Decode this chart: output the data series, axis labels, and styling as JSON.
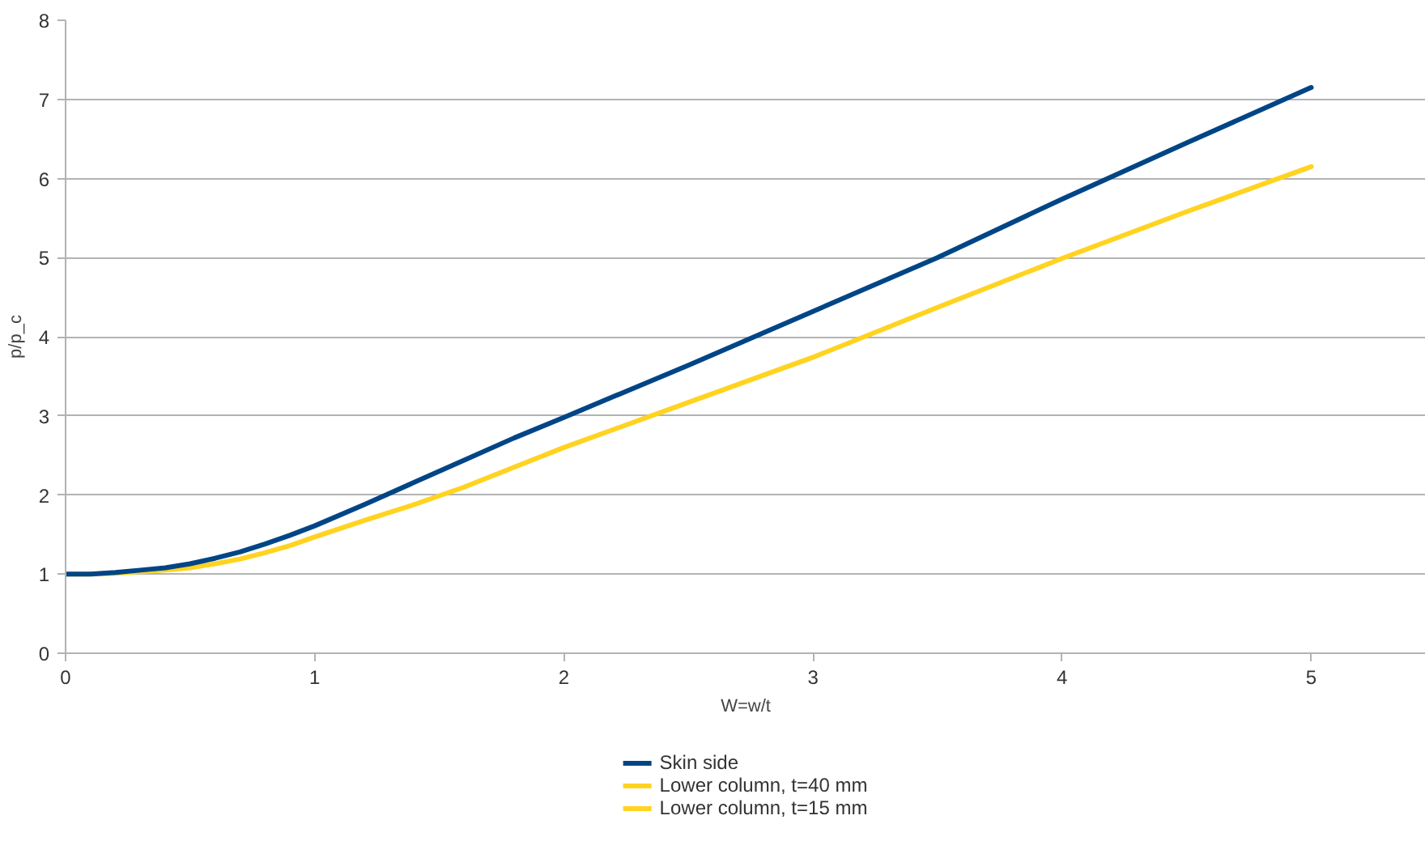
{
  "chart_data": {
    "type": "line",
    "xlabel": "W=w/t",
    "ylabel": "p/p_c",
    "x": [
      0,
      0.1,
      0.2,
      0.3,
      0.4,
      0.5,
      0.6,
      0.7,
      0.8,
      0.9,
      1.0,
      1.2,
      1.4,
      1.6,
      1.8,
      2.0,
      2.5,
      3.0,
      3.5,
      4.0,
      4.5,
      5.0
    ],
    "series": [
      {
        "name": "Skin side",
        "color": "#004586",
        "values": [
          1.0,
          1.0,
          1.02,
          1.05,
          1.08,
          1.13,
          1.2,
          1.28,
          1.38,
          1.49,
          1.61,
          1.88,
          2.16,
          2.44,
          2.72,
          2.98,
          3.64,
          4.32,
          5.0,
          5.74,
          6.45,
          7.15
        ]
      },
      {
        "name": "Lower column, t=40 mm",
        "color": "#ffd320",
        "values": [
          1.0,
          1.0,
          1.01,
          1.03,
          1.05,
          1.08,
          1.13,
          1.19,
          1.27,
          1.36,
          1.47,
          1.68,
          1.88,
          2.1,
          2.35,
          2.6,
          3.17,
          3.74,
          4.37,
          4.99,
          5.58,
          6.15
        ]
      },
      {
        "name": "Lower column, t=15 mm",
        "color": "#ffd320",
        "values": [
          null,
          null,
          null,
          null,
          null,
          null,
          null,
          null,
          null,
          null,
          null,
          null,
          null,
          null,
          null,
          null,
          null,
          null,
          null,
          null,
          null,
          null
        ]
      }
    ],
    "xlim": [
      0,
      5.46
    ],
    "ylim": [
      0,
      8
    ],
    "xticks": [
      0,
      1,
      2,
      3,
      4,
      5
    ],
    "yticks": [
      0,
      1,
      2,
      3,
      4,
      5,
      6,
      7,
      8
    ],
    "grid": "y",
    "legend": "bottom",
    "line_style": "solid"
  }
}
